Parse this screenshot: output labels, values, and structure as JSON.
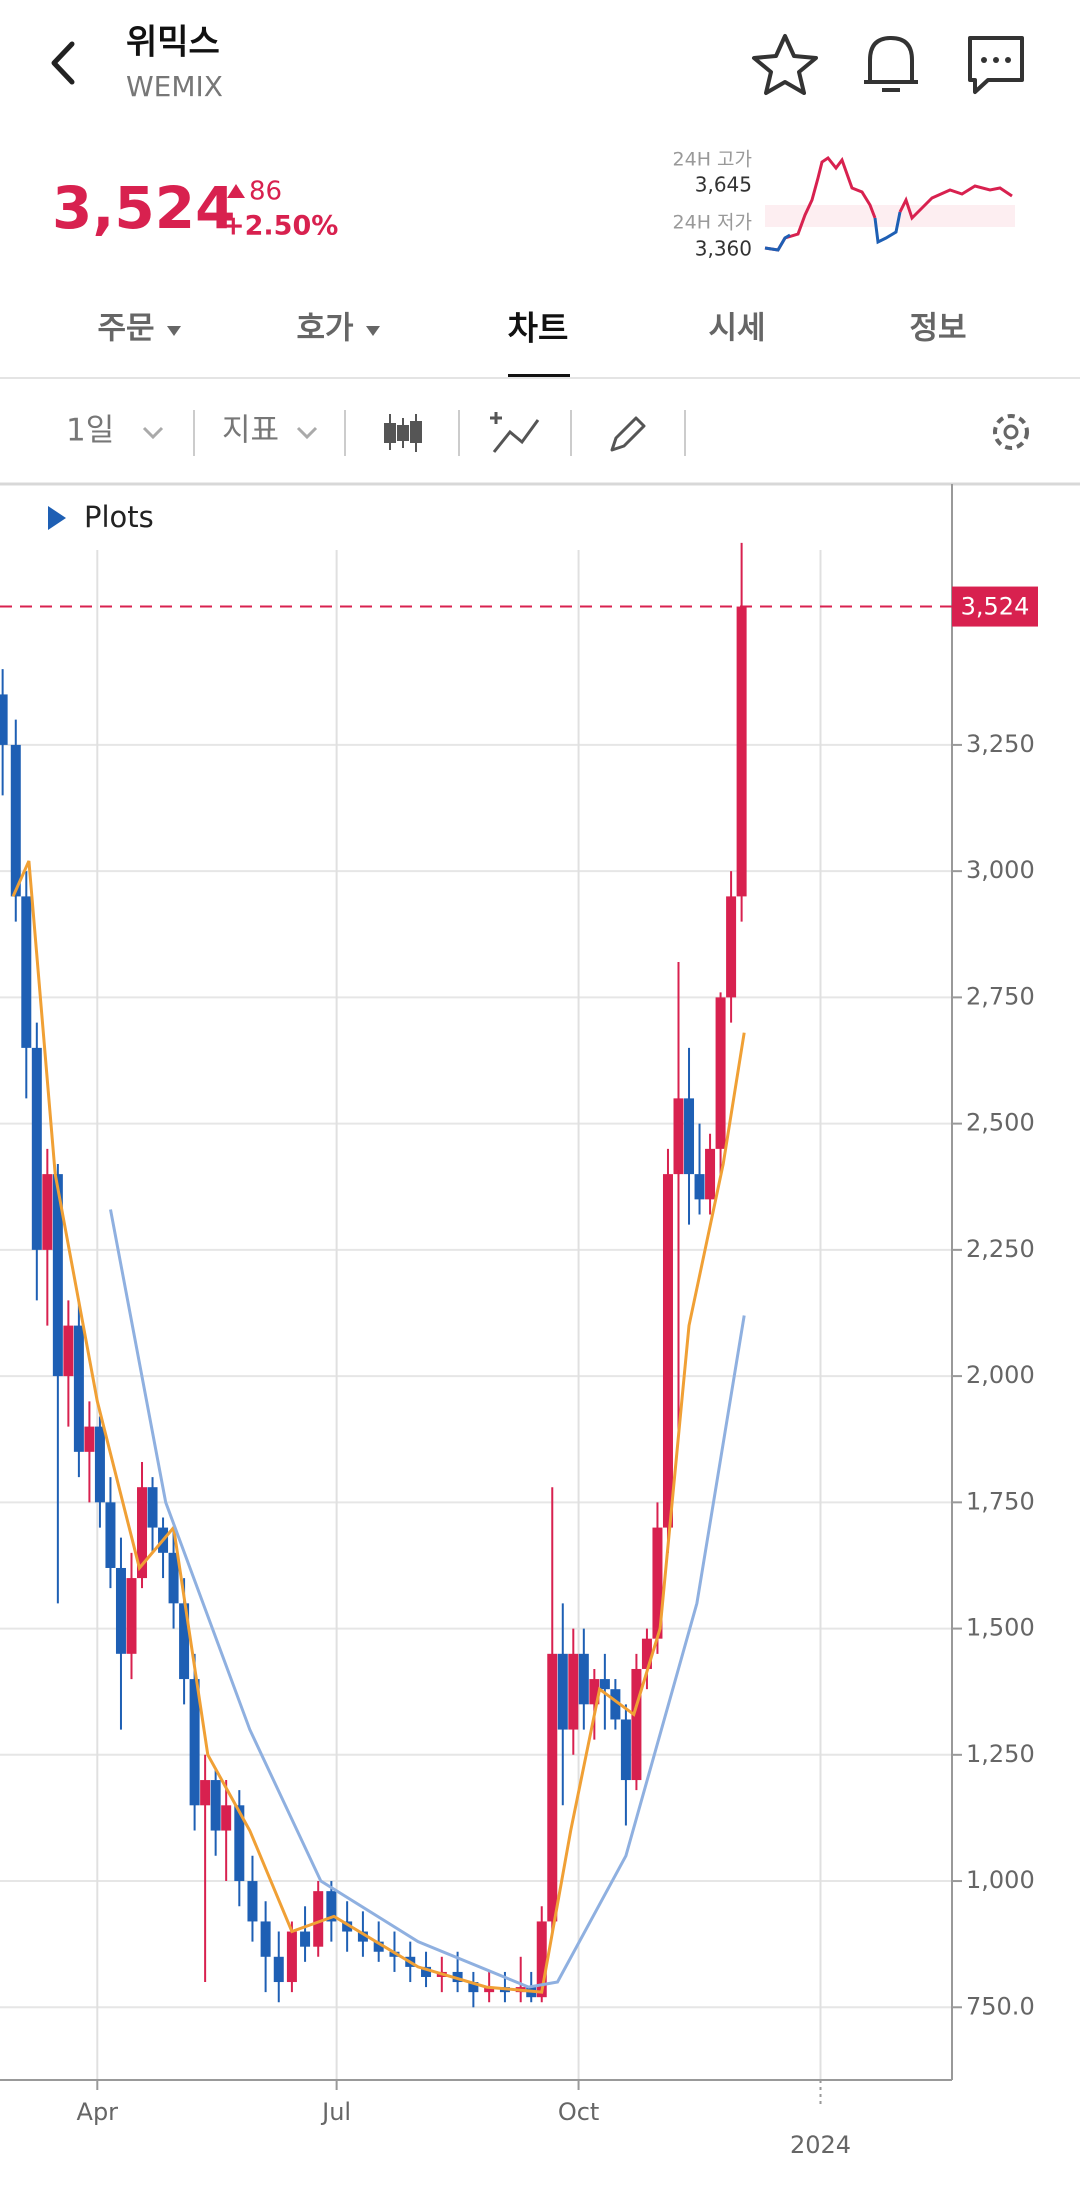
{
  "header": {
    "name": "위믹스",
    "symbol": "WEMIX",
    "price": "3,524",
    "change": "86",
    "change_pct": "+2.50%",
    "high_label": "24H 고가",
    "high": "3,645",
    "low_label": "24H 저가",
    "low": "3,360"
  },
  "tabs": [
    "주문",
    "호가",
    "차트",
    "시세",
    "정보"
  ],
  "toolbar": {
    "period": "1일",
    "indicator": "지표"
  },
  "chart_data": {
    "type": "candlestick",
    "legend_label": "Plots",
    "xlim": [
      54,
      416
    ],
    "ylim": [
      606,
      3636
    ],
    "xticks": [
      {
        "value": 91,
        "label": "Apr"
      },
      {
        "value": 182,
        "label": "Jul"
      },
      {
        "value": 274,
        "label": "Oct"
      },
      {
        "value": 366,
        "label": "2024"
      }
    ],
    "yticks": [
      {
        "value": 750,
        "label": "750.0"
      },
      {
        "value": 1000,
        "label": "1,000"
      },
      {
        "value": 1250,
        "label": "1,250"
      },
      {
        "value": 1500,
        "label": "1,500"
      },
      {
        "value": 1750,
        "label": "1,750"
      },
      {
        "value": 2000,
        "label": "2,000"
      },
      {
        "value": 2250,
        "label": "2,250"
      },
      {
        "value": 2500,
        "label": "2,500"
      },
      {
        "value": 2750,
        "label": "2,750"
      },
      {
        "value": 3000,
        "label": "3,000"
      },
      {
        "value": 3250,
        "label": "3,250"
      }
    ],
    "grid": true,
    "price_line": {
      "value": 3524,
      "label": "3,524",
      "color": "#d8214f"
    },
    "up_color": "#d8214f",
    "down_color": "#1e5fb4",
    "x": [
      55,
      60,
      64,
      68,
      72,
      76,
      80,
      84,
      88,
      92,
      96,
      100,
      104,
      108,
      112,
      116,
      120,
      124,
      128,
      132,
      136,
      140,
      145,
      150,
      155,
      160,
      165,
      170,
      175,
      180,
      186,
      192,
      198,
      204,
      210,
      216,
      222,
      228,
      234,
      240,
      246,
      252,
      256,
      260,
      264,
      268,
      272,
      276,
      280,
      284,
      288,
      292,
      296,
      300,
      304,
      308,
      312,
      316,
      320,
      324,
      328,
      332,
      336
    ],
    "open": [
      3350,
      3250,
      2950,
      2650,
      2250,
      2400,
      2000,
      2100,
      1850,
      1900,
      1750,
      1620,
      1450,
      1600,
      1780,
      1700,
      1650,
      1550,
      1400,
      1150,
      1200,
      1100,
      1150,
      1000,
      920,
      850,
      800,
      900,
      870,
      980,
      920,
      900,
      880,
      860,
      850,
      830,
      810,
      820,
      800,
      780,
      790,
      780,
      790,
      770,
      920,
      1450,
      1300,
      1450,
      1350,
      1400,
      1380,
      1320,
      1200,
      1420,
      1480,
      1700,
      2400,
      2550,
      2400,
      2350,
      2450,
      2750,
      2950
    ],
    "high": [
      3400,
      3300,
      3000,
      2700,
      2450,
      2420,
      2150,
      2150,
      1950,
      1920,
      1800,
      1680,
      1650,
      1830,
      1800,
      1720,
      1700,
      1600,
      1450,
      1250,
      1220,
      1200,
      1180,
      1050,
      960,
      900,
      920,
      950,
      1000,
      1000,
      960,
      940,
      920,
      900,
      880,
      860,
      850,
      860,
      820,
      820,
      820,
      850,
      820,
      950,
      1780,
      1550,
      1500,
      1500,
      1420,
      1450,
      1400,
      1350,
      1450,
      1500,
      1750,
      2450,
      2820,
      2650,
      2500,
      2480,
      2760,
      3000,
      3650
    ],
    "low": [
      3150,
      2900,
      2550,
      2150,
      2100,
      1550,
      1900,
      1800,
      1750,
      1700,
      1580,
      1300,
      1400,
      1580,
      1650,
      1600,
      1500,
      1350,
      1100,
      800,
      1050,
      1000,
      950,
      880,
      780,
      760,
      780,
      840,
      850,
      880,
      860,
      850,
      840,
      820,
      800,
      790,
      780,
      780,
      750,
      760,
      760,
      760,
      760,
      760,
      900,
      1150,
      1250,
      1300,
      1280,
      1300,
      1300,
      1110,
      1180,
      1380,
      1450,
      1650,
      1880,
      2300,
      2320,
      2320,
      2400,
      2700,
      2900
    ],
    "close": [
      3250,
      2950,
      2650,
      2250,
      2400,
      2000,
      2100,
      1850,
      1900,
      1750,
      1620,
      1450,
      1600,
      1780,
      1700,
      1650,
      1550,
      1400,
      1150,
      1200,
      1100,
      1150,
      1000,
      920,
      850,
      800,
      900,
      870,
      980,
      920,
      900,
      880,
      860,
      850,
      830,
      810,
      820,
      800,
      780,
      790,
      780,
      790,
      770,
      920,
      1450,
      1300,
      1450,
      1350,
      1400,
      1380,
      1320,
      1200,
      1420,
      1480,
      1700,
      2400,
      2550,
      2400,
      2350,
      2450,
      2750,
      2950,
      3524
    ],
    "series": [
      {
        "color": "#f0a035",
        "x": [
          59,
          65,
          75,
          91,
          107,
          120,
          133,
          149,
          165,
          181,
          213,
          239,
          260,
          271,
          282,
          295,
          305,
          316,
          329,
          337
        ],
        "values": [
          2950,
          3020,
          2400,
          1950,
          1620,
          1700,
          1250,
          1100,
          900,
          930,
          830,
          790,
          780,
          1100,
          1380,
          1330,
          1500,
          2100,
          2420,
          2680
        ]
      },
      {
        "color": "#8fb0e0",
        "x": [
          96,
          117,
          149,
          176,
          213,
          255,
          266,
          292,
          319,
          337
        ],
        "values": [
          2330,
          1750,
          1300,
          1000,
          880,
          790,
          800,
          1050,
          1550,
          2120
        ]
      }
    ]
  }
}
